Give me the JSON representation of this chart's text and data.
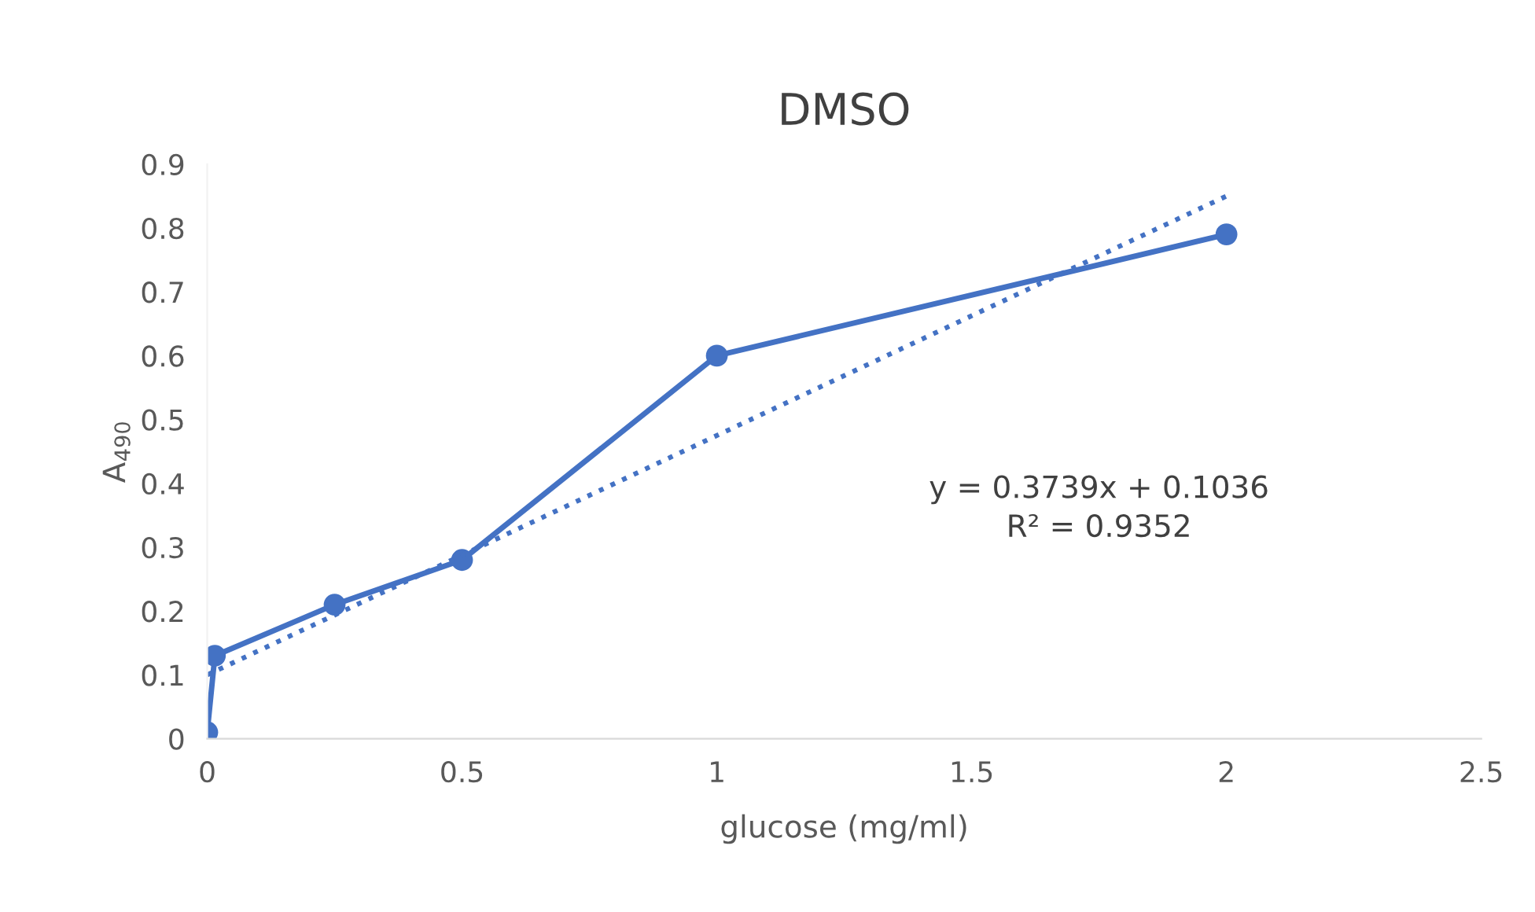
{
  "chart_data": {
    "type": "line",
    "title": "DMSO",
    "xlabel": "glucose (mg/ml)",
    "ylabel": "A$_{490}$",
    "xlim": [
      0,
      2.5
    ],
    "xticks": [
      0,
      0.5,
      1,
      1.5,
      2,
      2.5
    ],
    "ylim": [
      0,
      0.9
    ],
    "yticks": [
      0,
      0.1,
      0.2,
      0.3,
      0.4,
      0.5,
      0.6,
      0.7,
      0.8,
      0.9
    ],
    "grid": false,
    "legend": false,
    "series": [
      {
        "color": "#4472c4",
        "marker": "circle",
        "line_style": "solid",
        "x": [
          0,
          0.015,
          0.25,
          0.5,
          1,
          2
        ],
        "values": [
          0.01,
          0.13,
          0.21,
          0.28,
          0.6,
          0.79
        ]
      },
      {
        "color": "#4472c4",
        "marker": "none",
        "line_style": "dotted",
        "x": [
          0,
          2
        ],
        "values": [
          0.1,
          0.85
        ]
      }
    ],
    "annotations": [
      "y = 0.3739x + 0.1036\nR² = 0.9352"
    ]
  }
}
